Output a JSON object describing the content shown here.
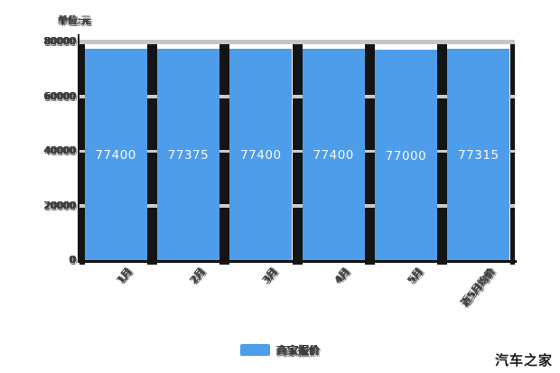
{
  "unit_label": "单位:元",
  "watermark": "汽车之家",
  "legend": {
    "label": "商家报价",
    "color": "#4E9DEA"
  },
  "colors": {
    "bar": "#4E9DEA",
    "gridline": "#CBCBCB",
    "top_line": "#C6C6C6",
    "separator": "#141414",
    "axis": "#141414",
    "tick_text": "#3A3A3A",
    "value_text": "#F4F8FC"
  },
  "chart_data": {
    "type": "bar",
    "categories": [
      "1月",
      "2月",
      "3月",
      "4月",
      "5月",
      "近5月均价"
    ],
    "values": [
      77400,
      77375,
      77400,
      77400,
      77000,
      77315
    ],
    "value_labels": [
      "77400",
      "77375",
      "77400",
      "77400",
      "77000",
      "77315"
    ],
    "title": "",
    "xlabel": "",
    "ylabel": "单位:元",
    "ylim": [
      0,
      80000
    ],
    "yticks": [
      0,
      20000,
      40000,
      60000,
      80000
    ],
    "ytick_labels": [
      "0",
      "20000",
      "40000",
      "60000",
      "80000"
    ],
    "grid": true,
    "legend_position": "bottom-center",
    "bar_color": "#4E9DEA",
    "value_label_color": "#F4F8FC"
  }
}
